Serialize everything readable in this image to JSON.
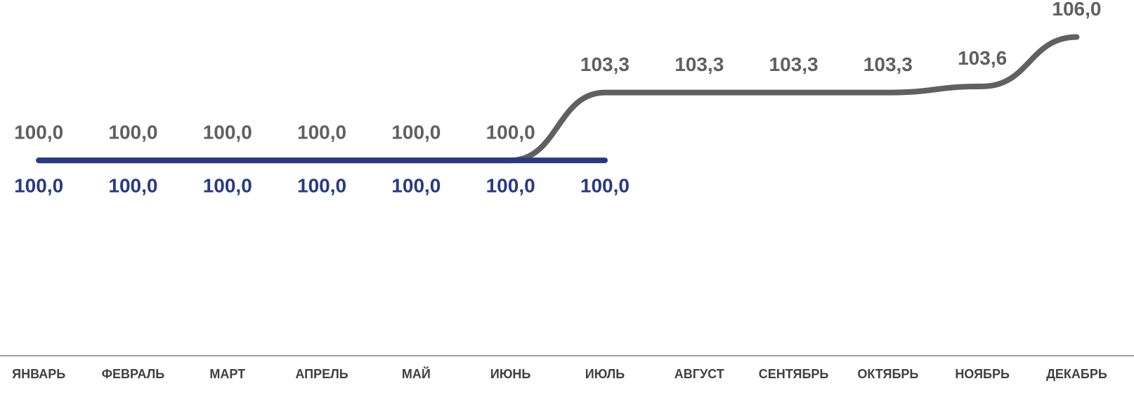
{
  "chart_data": {
    "type": "line",
    "categories": [
      "ЯНВАРЬ",
      "ФЕВРАЛЬ",
      "МАРТ",
      "АПРЕЛЬ",
      "МАЙ",
      "ИЮНЬ",
      "ИЮЛЬ",
      "АВГУСТ",
      "СЕНТЯБРЬ",
      "ОКТЯБРЬ",
      "НОЯБРЬ",
      "ДЕКАБРЬ"
    ],
    "series": [
      {
        "color": "#606060",
        "values": [
          100.0,
          100.0,
          100.0,
          100.0,
          100.0,
          100.0,
          103.3,
          103.3,
          103.3,
          103.3,
          103.6,
          106.0
        ],
        "value_labels": [
          "100,0",
          "100,0",
          "100,0",
          "100,0",
          "100,0",
          "100,0",
          "103,3",
          "103,3",
          "103,3",
          "103,3",
          "103,6",
          "106,0"
        ]
      },
      {
        "color": "#283a83",
        "values": [
          100.0,
          100.0,
          100.0,
          100.0,
          100.0,
          100.0,
          100.0,
          null,
          null,
          null,
          null,
          null
        ],
        "value_labels": [
          "100,0",
          "100,0",
          "100,0",
          "100,0",
          "100,0",
          "100,0",
          "100,0",
          null,
          null,
          null,
          null,
          null
        ]
      }
    ],
    "ylim": [
      90.5,
      107.8
    ]
  }
}
